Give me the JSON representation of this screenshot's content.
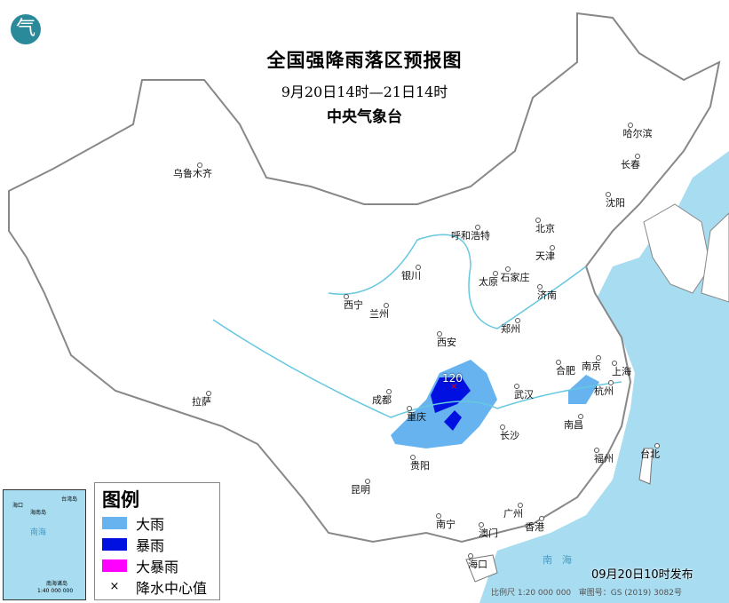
{
  "header": {
    "title": "全国强降雨落区预报图",
    "period": "9月20日14时—21日14时",
    "issuer": "中央气象台",
    "logo_icon": "cma-logo-icon"
  },
  "cities": [
    "乌鲁木齐",
    "哈尔滨",
    "长春",
    "沈阳",
    "呼和浩特",
    "北京",
    "天津",
    "石家庄",
    "太原",
    "济南",
    "银川",
    "西宁",
    "兰州",
    "西安",
    "郑州",
    "合肥",
    "南京",
    "上海",
    "杭州",
    "武汉",
    "成都",
    "重庆",
    "拉萨",
    "长沙",
    "南昌",
    "福州",
    "台北",
    "贵阳",
    "昆明",
    "南宁",
    "广州",
    "澳门",
    "香港",
    "海口"
  ],
  "rain_center": {
    "value": "120"
  },
  "legend": {
    "title": "图例",
    "items": [
      {
        "label": "大雨",
        "color": "#66b3f0"
      },
      {
        "label": "暴雨",
        "color": "#0010e0"
      },
      {
        "label": "大暴雨",
        "color": "#ff00ff"
      },
      {
        "label": "降水中心值",
        "symbol": "×"
      }
    ]
  },
  "inset": {
    "labels": [
      "南海",
      "海口",
      "海南岛",
      "台湾岛",
      "南海诸岛"
    ],
    "scale": "1:40 000 000"
  },
  "footer": {
    "published": "09月20日10时发布",
    "scale": "比例尺 1:20 000 000",
    "approval": "审图号：GS (2019) 3082号",
    "sea": "南　海"
  },
  "colors": {
    "sea": "#a8dcf0",
    "land": "#ffffff",
    "border": "#777777"
  }
}
